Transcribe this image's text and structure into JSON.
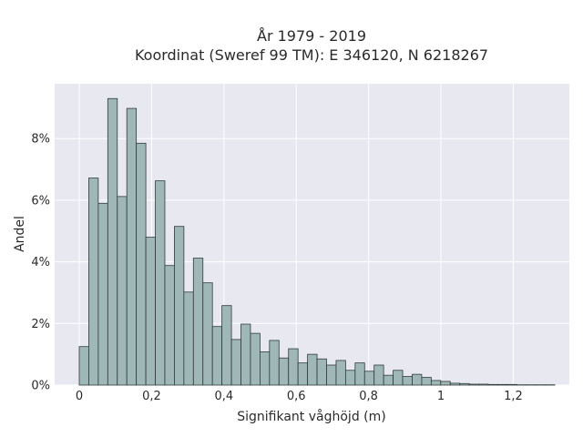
{
  "chart_data": {
    "type": "bar",
    "title_line1": "År 1979 - 2019",
    "title_line2": "Koordinat (Sweref 99 TM): E 346120, N 6218267",
    "xlabel": "Signifikant våghöjd (m)",
    "ylabel": "Andel",
    "xlim": [
      -0.068,
      1.355
    ],
    "ylim": [
      0,
      0.0978
    ],
    "x_ticks": [
      0,
      0.2,
      0.4,
      0.6,
      0.8,
      1.0,
      1.2
    ],
    "x_tick_labels": [
      "0",
      "0,2",
      "0,4",
      "0,6",
      "0,8",
      "1",
      "1,2"
    ],
    "y_ticks": [
      0,
      0.02,
      0.04,
      0.06,
      0.08
    ],
    "y_tick_labels": [
      "0%",
      "2%",
      "4%",
      "6%",
      "8%"
    ],
    "bin_start": 0,
    "bin_width": 0.0263,
    "values": [
      0.0125,
      0.0672,
      0.059,
      0.093,
      0.0612,
      0.0898,
      0.0785,
      0.048,
      0.0663,
      0.0388,
      0.0515,
      0.0302,
      0.0412,
      0.0332,
      0.019,
      0.0258,
      0.0148,
      0.0198,
      0.0168,
      0.0108,
      0.0145,
      0.0088,
      0.0118,
      0.0072,
      0.01,
      0.0085,
      0.0065,
      0.008,
      0.0048,
      0.0072,
      0.0045,
      0.0065,
      0.0032,
      0.0048,
      0.0028,
      0.0035,
      0.0025,
      0.0015,
      0.0012,
      0.0006,
      0.0005,
      0.0003,
      0.0003,
      0.0002,
      0.0002,
      0.0002,
      0.0001,
      0.0001,
      0.0001,
      0.0001
    ],
    "colors": {
      "plot_bg": "#e8e8f1",
      "grid": "#ffffff",
      "bar_fill": "#9fb7b6",
      "bar_stroke": "#2f3b3b"
    }
  }
}
